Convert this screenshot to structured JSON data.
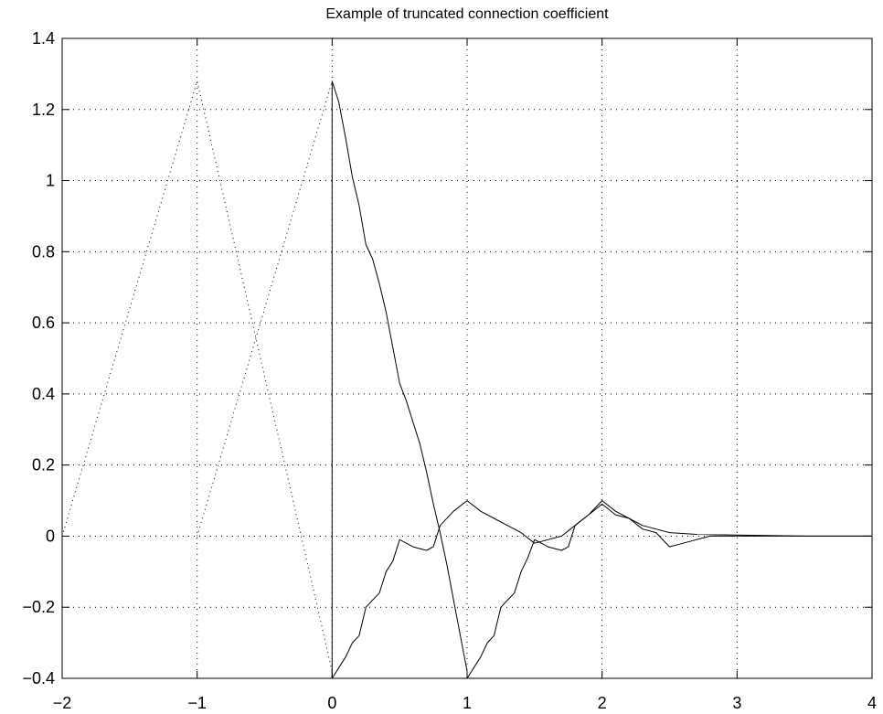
{
  "chart_data": {
    "type": "line",
    "title": "Example of truncated connection coefficient",
    "xlabel": "",
    "ylabel": "",
    "xlim": [
      -2,
      4
    ],
    "ylim": [
      -0.4,
      1.4
    ],
    "grid": true,
    "x_ticks": [
      "−2",
      "−1",
      "0",
      "1",
      "2",
      "3",
      "4"
    ],
    "y_ticks": [
      "−0.4",
      "−0.2",
      "0",
      "0.2",
      "0.4",
      "0.6",
      "0.8",
      "1",
      "1.2",
      "1.4"
    ],
    "series": [
      {
        "style": "dotted",
        "points": [
          [
            -2,
            0
          ],
          [
            -1,
            1.28
          ],
          [
            0,
            -0.38
          ]
        ]
      },
      {
        "style": "dotted",
        "points": [
          [
            -1,
            0
          ],
          [
            0,
            1.28
          ]
        ]
      },
      {
        "style": "solid",
        "points": [
          [
            0,
            1.28
          ],
          [
            0.05,
            1.22
          ],
          [
            0.1,
            1.12
          ],
          [
            0.15,
            1.01
          ],
          [
            0.2,
            0.93
          ],
          [
            0.25,
            0.82
          ],
          [
            0.3,
            0.78
          ],
          [
            0.35,
            0.71
          ],
          [
            0.4,
            0.63
          ],
          [
            0.45,
            0.53
          ],
          [
            0.5,
            0.43
          ],
          [
            0.55,
            0.38
          ],
          [
            0.6,
            0.32
          ],
          [
            0.65,
            0.26
          ],
          [
            0.7,
            0.18
          ],
          [
            0.75,
            0.09
          ],
          [
            0.8,
            0.01
          ],
          [
            0.85,
            -0.08
          ],
          [
            0.9,
            -0.18
          ],
          [
            0.95,
            -0.28
          ],
          [
            1,
            -0.38
          ]
        ]
      },
      {
        "style": "solid",
        "points": [
          [
            0,
            -0.4
          ],
          [
            0.05,
            -0.37
          ],
          [
            0.1,
            -0.34
          ],
          [
            0.15,
            -0.3
          ],
          [
            0.2,
            -0.28
          ],
          [
            0.25,
            -0.2
          ],
          [
            0.3,
            -0.18
          ],
          [
            0.35,
            -0.16
          ],
          [
            0.4,
            -0.1
          ],
          [
            0.45,
            -0.07
          ],
          [
            0.5,
            -0.01
          ],
          [
            0.55,
            -0.02
          ],
          [
            0.6,
            -0.03
          ],
          [
            0.65,
            -0.035
          ],
          [
            0.7,
            -0.04
          ],
          [
            0.75,
            -0.03
          ],
          [
            0.8,
            0.03
          ],
          [
            0.9,
            0.07
          ],
          [
            1,
            0.1
          ],
          [
            1.1,
            0.07
          ],
          [
            1.2,
            0.05
          ],
          [
            1.3,
            0.03
          ],
          [
            1.4,
            0.01
          ],
          [
            1.5,
            -0.02
          ],
          [
            1.6,
            -0.01
          ],
          [
            1.7,
            0.0
          ],
          [
            1.8,
            0.03
          ],
          [
            1.9,
            0.06
          ],
          [
            2,
            0.1
          ],
          [
            2.1,
            0.07
          ],
          [
            2.2,
            0.05
          ],
          [
            2.3,
            0.03
          ],
          [
            2.4,
            0.02
          ],
          [
            2.5,
            0.01
          ],
          [
            2.7,
            0.005
          ],
          [
            3,
            0.003
          ],
          [
            3.5,
            0.0
          ],
          [
            4,
            0.0
          ]
        ]
      },
      {
        "style": "solid",
        "points": [
          [
            0,
            1.28
          ],
          [
            0,
            -0.4
          ]
        ]
      },
      {
        "style": "solid",
        "points": [
          [
            1,
            -0.4
          ],
          [
            1.05,
            -0.37
          ],
          [
            1.1,
            -0.34
          ],
          [
            1.15,
            -0.3
          ],
          [
            1.2,
            -0.28
          ],
          [
            1.25,
            -0.2
          ],
          [
            1.3,
            -0.18
          ],
          [
            1.35,
            -0.16
          ],
          [
            1.4,
            -0.1
          ],
          [
            1.45,
            -0.06
          ],
          [
            1.5,
            -0.01
          ],
          [
            1.55,
            -0.02
          ],
          [
            1.6,
            -0.03
          ],
          [
            1.65,
            -0.035
          ],
          [
            1.7,
            -0.04
          ],
          [
            1.75,
            -0.03
          ],
          [
            1.8,
            0.03
          ],
          [
            1.9,
            0.06
          ],
          [
            2,
            0.09
          ],
          [
            2.1,
            0.06
          ],
          [
            2.2,
            0.05
          ],
          [
            2.3,
            0.02
          ],
          [
            2.4,
            0.01
          ],
          [
            2.5,
            -0.03
          ],
          [
            2.6,
            -0.02
          ],
          [
            2.7,
            -0.01
          ],
          [
            2.8,
            0.0
          ],
          [
            2.9,
            0.0
          ],
          [
            3,
            0.0
          ],
          [
            3.5,
            0.0
          ],
          [
            4,
            0.0
          ]
        ]
      }
    ]
  }
}
